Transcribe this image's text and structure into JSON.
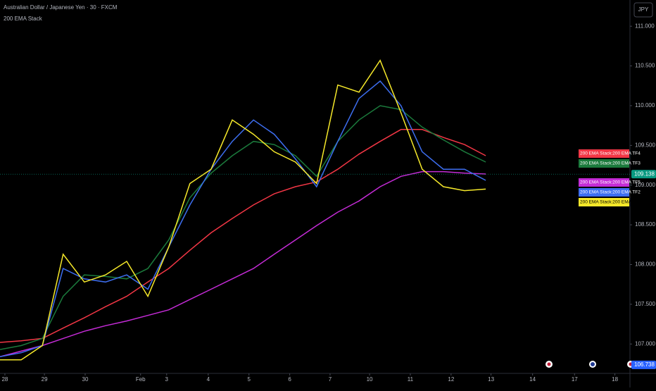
{
  "chart_data": {
    "type": "line",
    "title": "Australian Dollar / Japanese Yen · 30 · FXCM",
    "subtitle": "200 EMA Stack",
    "currency": "JPY",
    "x": [
      -0.12,
      0.4,
      0.92,
      1.43,
      1.95,
      2.47,
      2.99,
      3.51,
      4.02,
      4.54,
      5.06,
      5.58,
      6.1,
      6.61,
      7.13,
      7.65,
      8.17,
      8.69,
      9.21,
      9.72,
      10.24,
      10.76,
      11.28,
      11.8
    ],
    "xlim": [
      -0.12,
      15.34
    ],
    "xticks": [
      {
        "value": 0.0,
        "label": "28"
      },
      {
        "value": 0.97,
        "label": "29"
      },
      {
        "value": 1.97,
        "label": "30"
      },
      {
        "value": 3.33,
        "label": "Feb"
      },
      {
        "value": 3.97,
        "label": "3"
      },
      {
        "value": 4.99,
        "label": "4"
      },
      {
        "value": 5.99,
        "label": "5"
      },
      {
        "value": 6.99,
        "label": "6"
      },
      {
        "value": 7.98,
        "label": "7"
      },
      {
        "value": 8.95,
        "label": "10"
      },
      {
        "value": 9.95,
        "label": "11"
      },
      {
        "value": 10.95,
        "label": "12"
      },
      {
        "value": 11.93,
        "label": "13"
      },
      {
        "value": 12.95,
        "label": "14"
      },
      {
        "value": 13.98,
        "label": "17"
      },
      {
        "value": 14.97,
        "label": "18"
      }
    ],
    "ylim": [
      106.63,
      111.33
    ],
    "yticks": [
      {
        "value": 107,
        "label": "107.000"
      },
      {
        "value": 107.5,
        "label": "107.500"
      },
      {
        "value": 108,
        "label": "108.000"
      },
      {
        "value": 108.5,
        "label": "108.500"
      },
      {
        "value": 109,
        "label": "109.000"
      },
      {
        "value": 109.5,
        "label": "109.500"
      },
      {
        "value": 110,
        "label": "110.000"
      },
      {
        "value": 110.5,
        "label": "110.500"
      },
      {
        "value": 111,
        "label": "111.000"
      }
    ],
    "series": [
      {
        "name": "200 EMA Stack:200 EMA TF4",
        "color": "#f23645",
        "values": [
          107.02,
          107.04,
          107.07,
          107.2,
          107.33,
          107.47,
          107.6,
          107.78,
          107.95,
          108.18,
          108.4,
          108.58,
          108.75,
          108.89,
          108.98,
          109.04,
          109.2,
          109.39,
          109.55,
          109.7,
          109.7,
          109.6,
          109.51,
          109.37
        ]
      },
      {
        "name": "200 EMA Stack:200 EMA TF3",
        "color": "#1b7a3c",
        "values": [
          106.93,
          106.98,
          107.07,
          107.6,
          107.87,
          107.85,
          107.82,
          107.95,
          108.31,
          108.84,
          109.15,
          109.37,
          109.55,
          109.51,
          109.37,
          109.11,
          109.55,
          109.82,
          110.0,
          109.95,
          109.73,
          109.57,
          109.42,
          109.29
        ]
      },
      {
        "name": "200 EMA Stack:200 EMA TF5",
        "color": "#c42bd6",
        "values": [
          106.84,
          106.91,
          106.98,
          107.07,
          107.16,
          107.23,
          107.29,
          107.36,
          107.43,
          107.56,
          107.69,
          107.82,
          107.95,
          108.13,
          108.31,
          108.49,
          108.66,
          108.8,
          108.98,
          109.11,
          109.17,
          109.17,
          109.15,
          109.14
        ]
      },
      {
        "name": "200 EMA Stack:200 EMA TF2",
        "color": "#3d6ef0",
        "values": [
          106.84,
          106.89,
          106.98,
          107.95,
          107.82,
          107.78,
          107.87,
          107.69,
          108.22,
          108.75,
          109.2,
          109.55,
          109.82,
          109.64,
          109.33,
          108.98,
          109.55,
          110.09,
          110.31,
          110.0,
          109.42,
          109.2,
          109.2,
          109.06
        ]
      },
      {
        "name": "200 EMA Stack:200 EMA TF1",
        "color": "#f5e82a",
        "values": [
          106.8,
          106.8,
          106.98,
          108.13,
          107.78,
          107.87,
          108.04,
          107.6,
          108.22,
          109.02,
          109.2,
          109.82,
          109.64,
          109.42,
          109.29,
          109.02,
          110.26,
          110.17,
          110.57,
          109.91,
          109.2,
          108.98,
          108.93,
          108.95
        ]
      }
    ],
    "price_labels": [
      {
        "value": 109.138,
        "color": "#089981"
      },
      {
        "value": 106.738,
        "color": "#2962ff"
      }
    ]
  }
}
